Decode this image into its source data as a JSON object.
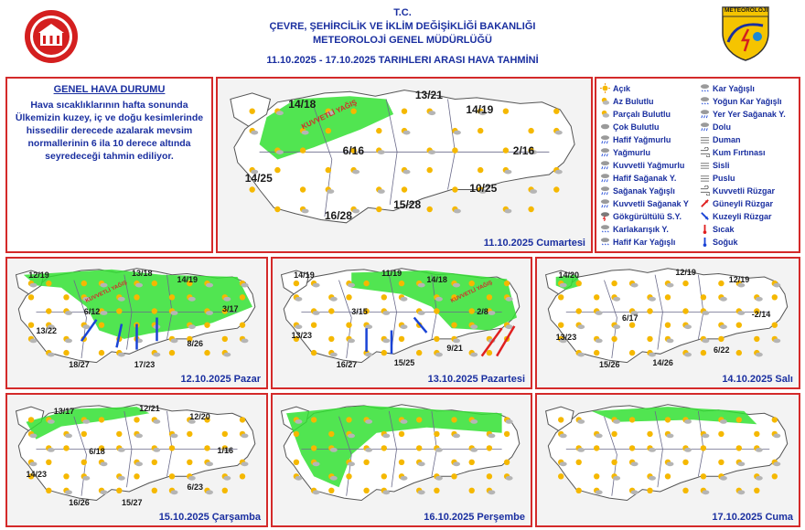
{
  "header": {
    "line1": "T.C.",
    "line2": "ÇEVRE, ŞEHİRCİLİK VE İKLİM DEĞİŞİKLİĞİ BAKANLIĞI",
    "line3": "METEOROLOJİ GENEL MÜDÜRLÜĞÜ",
    "line4": "11.10.2025 - 17.10.2025 TARIHLERI ARASI HAVA TAHMİNİ",
    "logo_right_text": "METEOROLOJİ"
  },
  "general": {
    "title": "GENEL HAVA DURUMU",
    "text": "Hava sıcaklıklarının hafta sonunda Ülkemizin kuzey, iç ve doğu kesimlerinde hissedilir derecede azalarak mevsim normallerinin 6 ila 10 derece altında seyredeceği tahmin ediliyor."
  },
  "legend": {
    "col1": [
      "Açık",
      "Az Bulutlu",
      "Parçalı Bulutlu",
      "Çok Bulutlu",
      "Hafif Yağmurlu",
      "Yağmurlu",
      "Kuvvetli Yağmurlu",
      "Hafif Sağanak Y.",
      "Sağanak Yağışlı",
      "Kuvvetli Sağanak Y",
      "Gökgürültülü S.Y.",
      "Karlakarışık Y.",
      "Hafif Kar Yağışlı"
    ],
    "col2": [
      "Kar Yağışlı",
      "Yoğun Kar Yağışlı",
      "Yer Yer Sağanak Y.",
      "Dolu",
      "Duman",
      "Kum Fırtınası",
      "Sisli",
      "Puslu",
      "Kuvvetli Rüzgar",
      "Güneyli Rüzgar",
      "Kuzeyli Rüzgar",
      "Sıcak",
      "Soğuk"
    ]
  },
  "maps": [
    {
      "date": "11.10.2025 Cumartesi",
      "temps": [
        "14/18",
        "13/21",
        "14/19",
        "6/16",
        "2/16",
        "14/25",
        "10/25",
        "15/28",
        "16/28"
      ],
      "label": "KUVVETLİ YAĞIŞ"
    },
    {
      "date": "12.10.2025 Pazar",
      "temps": [
        "12/19",
        "13/18",
        "14/19",
        "6/12",
        "3/17",
        "13/22",
        "8/26",
        "18/27",
        "17/23"
      ],
      "label": "KUVVETLİ YAĞIŞ"
    },
    {
      "date": "13.10.2025 Pazartesi",
      "temps": [
        "14/19",
        "11/19",
        "14/18",
        "3/15",
        "2/8",
        "13/23",
        "9/21",
        "16/27",
        "15/25"
      ],
      "label": "KUVVETLİ YAĞIŞ"
    },
    {
      "date": "14.10.2025 Salı",
      "temps": [
        "14/20",
        "12/19",
        "12/19",
        "6/17",
        "-2/14",
        "13/23",
        "6/22",
        "15/26",
        "14/26"
      ]
    },
    {
      "date": "15.10.2025 Çarşamba",
      "temps": [
        "13/17",
        "12/21",
        "12/20",
        "6/18",
        "1/16",
        "14/23",
        "6/23",
        "15/27",
        "16/26"
      ]
    },
    {
      "date": "16.10.2025 Perşembe",
      "temps": []
    },
    {
      "date": "17.10.2025 Cuma",
      "temps": []
    }
  ],
  "colors": {
    "border": "#d42a2a",
    "title": "#1a2fa0",
    "rain_area": "#33e033",
    "map_fill": "#f3f3f3",
    "north_wind": "#1a44d6",
    "south_wind": "#e02020"
  }
}
